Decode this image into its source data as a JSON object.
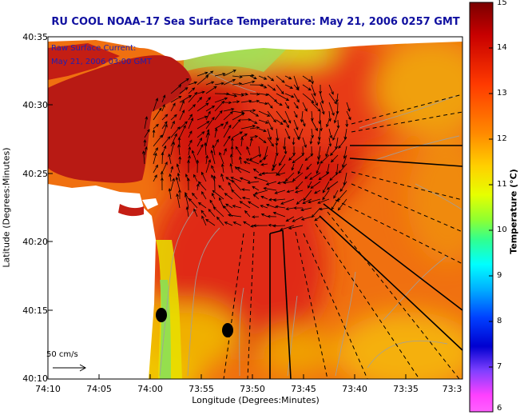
{
  "title": "RU COOL  NOAA–17  Sea Surface Temperature:  May 21, 2006 0257 GMT",
  "current_label_1": "Raw Surface Current:",
  "current_label_2": "May 21, 2006 03:00 GMT",
  "scale_label": "50 cm/s",
  "x_axis_label": "Longitude (Degrees:Minutes)",
  "y_axis_label": "Latitude (Degrees:Minutes)",
  "x_ticks": [
    "74:10",
    "74:05",
    "74:00",
    "73:55",
    "73:50",
    "73:45",
    "73:40",
    "73:35",
    "73:3"
  ],
  "y_ticks": [
    "40:35",
    "40:30",
    "40:25",
    "40:20",
    "40:15",
    "40:10"
  ],
  "colorbar": {
    "label": "Temperature (°C)",
    "ticks": [
      "15",
      "14",
      "13",
      "12",
      "11",
      "10",
      "9",
      "8",
      "7",
      "6"
    ],
    "range": [
      6,
      15
    ]
  },
  "colors": {
    "title": "#1010a0",
    "land": "#ffffff",
    "warm_water": "#c81e12",
    "cool_water": "#e8c800"
  }
}
